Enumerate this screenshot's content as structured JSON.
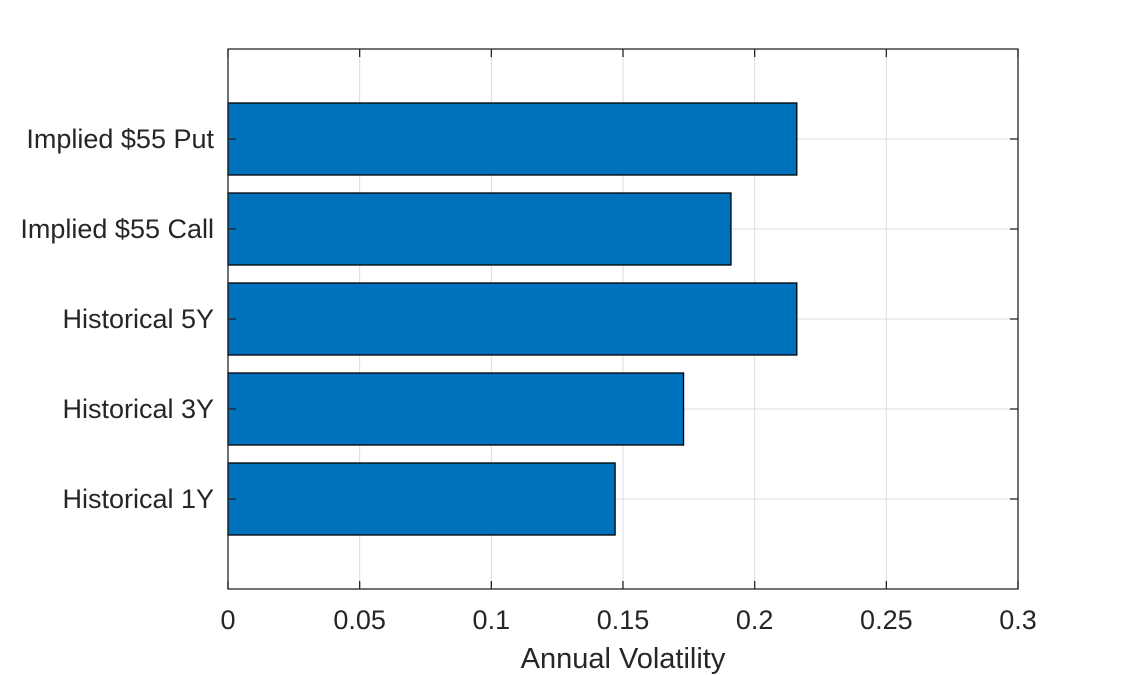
{
  "chart_data": {
    "type": "bar",
    "orientation": "horizontal",
    "categories": [
      "Historical 1Y",
      "Historical 3Y",
      "Historical 5Y",
      "Implied $55 Call",
      "Implied $55 Put"
    ],
    "values": [
      0.147,
      0.173,
      0.216,
      0.191,
      0.216
    ],
    "title": "",
    "xlabel": "Annual Volatility",
    "ylabel": "",
    "xlim": [
      0,
      0.3
    ],
    "xticks": [
      "0",
      "0.05",
      "0.1",
      "0.15",
      "0.2",
      "0.25",
      "0.3"
    ],
    "grid": true,
    "bar_color": "#0072BD",
    "bar_edge_color": "#000000"
  }
}
